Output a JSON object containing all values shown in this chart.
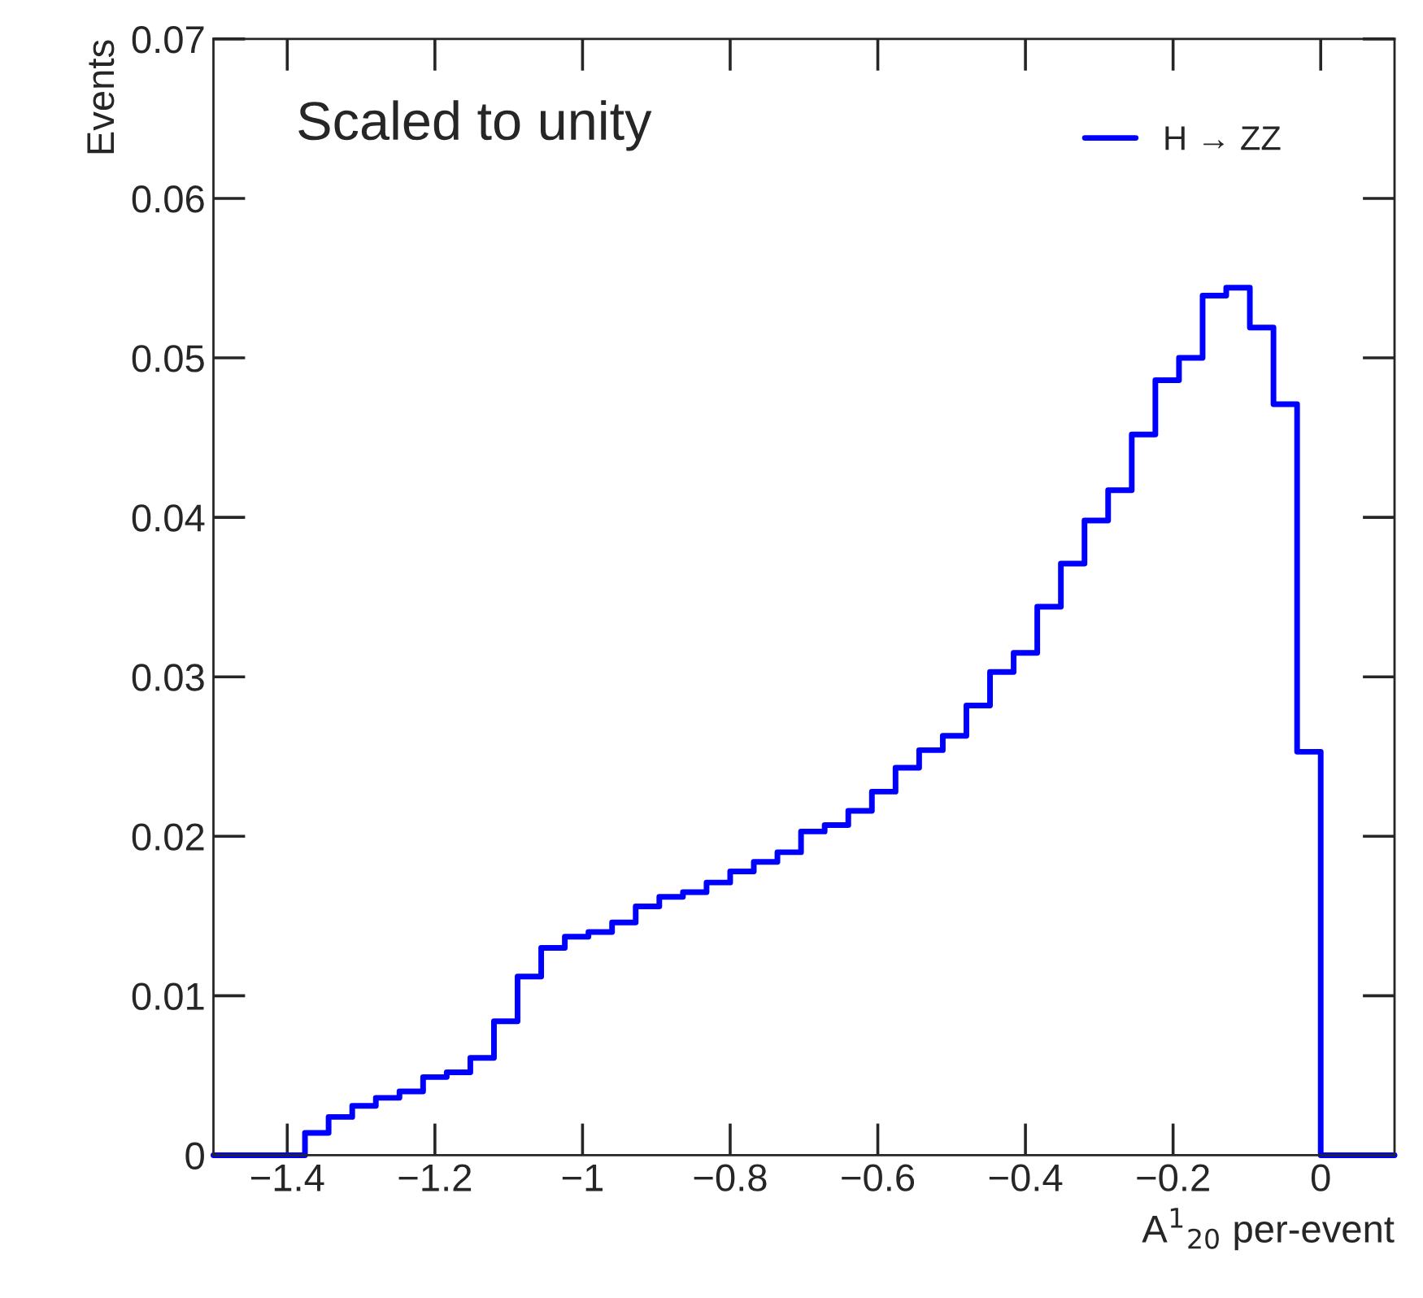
{
  "chart_data": {
    "type": "step",
    "xlabel": "A$^{1}$$_{20}$ per-event",
    "ylabel": "Events",
    "annotations": [
      "Scaled to unity"
    ],
    "x": [
      -1.5,
      -1.376,
      -1.344,
      -1.312,
      -1.28,
      -1.248,
      -1.216,
      -1.184,
      -1.152,
      -1.12,
      -1.088,
      -1.056,
      -1.024,
      -0.992,
      -0.96,
      -0.928,
      -0.896,
      -0.864,
      -0.832,
      -0.8,
      -0.768,
      -0.736,
      -0.704,
      -0.672,
      -0.64,
      -0.608,
      -0.576,
      -0.544,
      -0.512,
      -0.48,
      -0.448,
      -0.416,
      -0.384,
      -0.352,
      -0.32,
      -0.288,
      -0.256,
      -0.224,
      -0.192,
      -0.16,
      -0.128,
      -0.096,
      -0.064,
      -0.032,
      0,
      0.1
    ],
    "series": [
      {
        "name": "H → ZZ",
        "color": "#0000ff",
        "values": [
          0,
          0.0014,
          0.0024,
          0.0031,
          0.0036,
          0.004,
          0.0049,
          0.0052,
          0.0061,
          0.0084,
          0.0112,
          0.013,
          0.0137,
          0.014,
          0.0146,
          0.0156,
          0.0162,
          0.0165,
          0.0171,
          0.0178,
          0.0184,
          0.019,
          0.0203,
          0.0207,
          0.0216,
          0.0228,
          0.0243,
          0.0254,
          0.0263,
          0.0282,
          0.0303,
          0.0315,
          0.0344,
          0.0371,
          0.0398,
          0.0417,
          0.0452,
          0.0486,
          0.05,
          0.0539,
          0.0544,
          0.0519,
          0.0471,
          0.0253,
          0,
          0
        ]
      }
    ],
    "xlim": [
      -1.5,
      0.1
    ],
    "xticks": [
      {
        "value": -1.4,
        "label": "−1.4"
      },
      {
        "value": -1.2,
        "label": "−1.2"
      },
      {
        "value": -1,
        "label": "−1"
      },
      {
        "value": -0.8,
        "label": "−0.8"
      },
      {
        "value": -0.6,
        "label": "−0.6"
      },
      {
        "value": -0.4,
        "label": "−0.4"
      },
      {
        "value": -0.2,
        "label": "−0.2"
      },
      0
    ],
    "ylim": [
      0,
      0.07
    ],
    "yticks": [
      0,
      0.01,
      0.02,
      0.03,
      0.04,
      0.05,
      0.06,
      0.07
    ],
    "legend": "top right",
    "grid": false
  }
}
